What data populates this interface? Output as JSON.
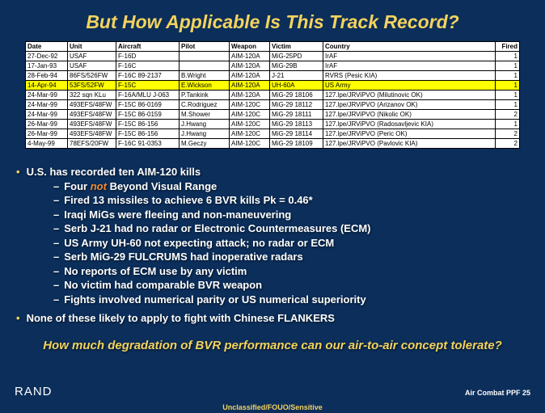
{
  "title": "But How Applicable Is This Track Record?",
  "table": {
    "headers": [
      "Date",
      "Unit",
      "Aircraft",
      "Pilot",
      "Weapon",
      "Victim",
      "Country",
      "Fired"
    ],
    "rows": [
      {
        "c": [
          "27-Dec-92",
          "USAF",
          "F-16D",
          "",
          "AIM-120A",
          "MiG-25PD",
          "IrAF",
          "1"
        ],
        "hl": false
      },
      {
        "c": [
          "17-Jan-93",
          "USAF",
          "F-16C",
          "",
          "AIM-120A",
          "MiG-29B",
          "IrAF",
          "1"
        ],
        "hl": false
      },
      {
        "c": [
          "28-Feb-94",
          "86FS/526FW",
          "F-16C 89-2137",
          "B.Wright",
          "AIM-120A",
          "J-21",
          "RVRS (Pesic KIA)",
          "1"
        ],
        "hl": false
      },
      {
        "c": [
          "14-Apr-94",
          "53FS/52FW",
          "F-15C",
          "E.Wickson",
          "AIM-120A",
          "UH-60A",
          "US Army",
          "1"
        ],
        "hl": true
      },
      {
        "c": [
          "24-Mar-99",
          "322 sqn KLu",
          "F-16A/MLU J-063",
          "P.Tankink",
          "AIM-120A",
          "MiG-29 18106",
          "127.lpe/JRViPVO (Milutinovic OK)",
          "1"
        ],
        "hl": false
      },
      {
        "c": [
          "24-Mar-99",
          "493EFS/48FW",
          "F-15C 86-0169",
          "C.Rodriguez",
          "AIM-120C",
          "MiG-29 18112",
          "127.lpe/JRViPVO (Arizanov OK)",
          "1"
        ],
        "hl": false
      },
      {
        "c": [
          "24-Mar-99",
          "493EFS/48FW",
          "F-15C 86-0159",
          "M.Shower",
          "AIM-120C",
          "MiG-29 18111",
          "127.lpe/JRViPVO (Nikolic OK)",
          "2"
        ],
        "hl": false
      },
      {
        "c": [
          "26-Mar-99",
          "493EFS/48FW",
          "F-15C 86-156",
          "J.Hwang",
          "AIM-120C",
          "MiG-29 18113",
          "127.lpe/JRViPVO (Radosavljevic KIA)",
          "1"
        ],
        "hl": false
      },
      {
        "c": [
          "26-Mar-99",
          "493EFS/48FW",
          "F-15C 86-156",
          "J.Hwang",
          "AIM-120C",
          "MiG-29 18114",
          "127.lpe/JRViPVO (Peric OK)",
          "2"
        ],
        "hl": false
      },
      {
        "c": [
          "4-May-99",
          "78EFS/20FW",
          "F-16C 91-0353",
          "M.Geczy",
          "AIM-120C",
          "MiG-29 18109",
          "127.lpe/JRViPVO (Pavlovic KIA)",
          "2"
        ],
        "hl": false
      }
    ]
  },
  "bullets": [
    {
      "text": "U.S. has recorded ten AIM-120 kills",
      "level": 1
    },
    {
      "text": "Four |not| Beyond Visual Range",
      "level": 2
    },
    {
      "text": "Fired 13 missiles to achieve 6 BVR kills Pk = 0.46*",
      "level": 2
    },
    {
      "text": "Iraqi MiGs were fleeing and non-maneuvering",
      "level": 2
    },
    {
      "text": "Serb J-21 had no radar or Electronic Countermeasures (ECM)",
      "level": 2
    },
    {
      "text": "US Army UH-60 not expecting attack; no radar or  ECM",
      "level": 2
    },
    {
      "text": "Serb MiG-29 FULCRUMS had inoperative radars",
      "level": 2
    },
    {
      "text": "No reports of ECM use by any victim",
      "level": 2
    },
    {
      "text": "No victim had comparable BVR weapon",
      "level": 2
    },
    {
      "text": "Fights involved numerical parity or US numerical superiority",
      "level": 2
    },
    {
      "text": "None of these likely to apply to fight with Chinese FLANKERS",
      "level": 1
    }
  ],
  "closing": "How much degradation of BVR performance  can our air-to-air concept tolerate?",
  "footer": {
    "brand": "RAND",
    "page": "Air Combat PPF 25",
    "classification": "Unclassified/FOUO/Sensitive"
  },
  "colors": {
    "background": "#0b2e5a",
    "accent": "#f4d35e",
    "highlight_row": "#ffff00",
    "orange": "#f58a2a"
  }
}
